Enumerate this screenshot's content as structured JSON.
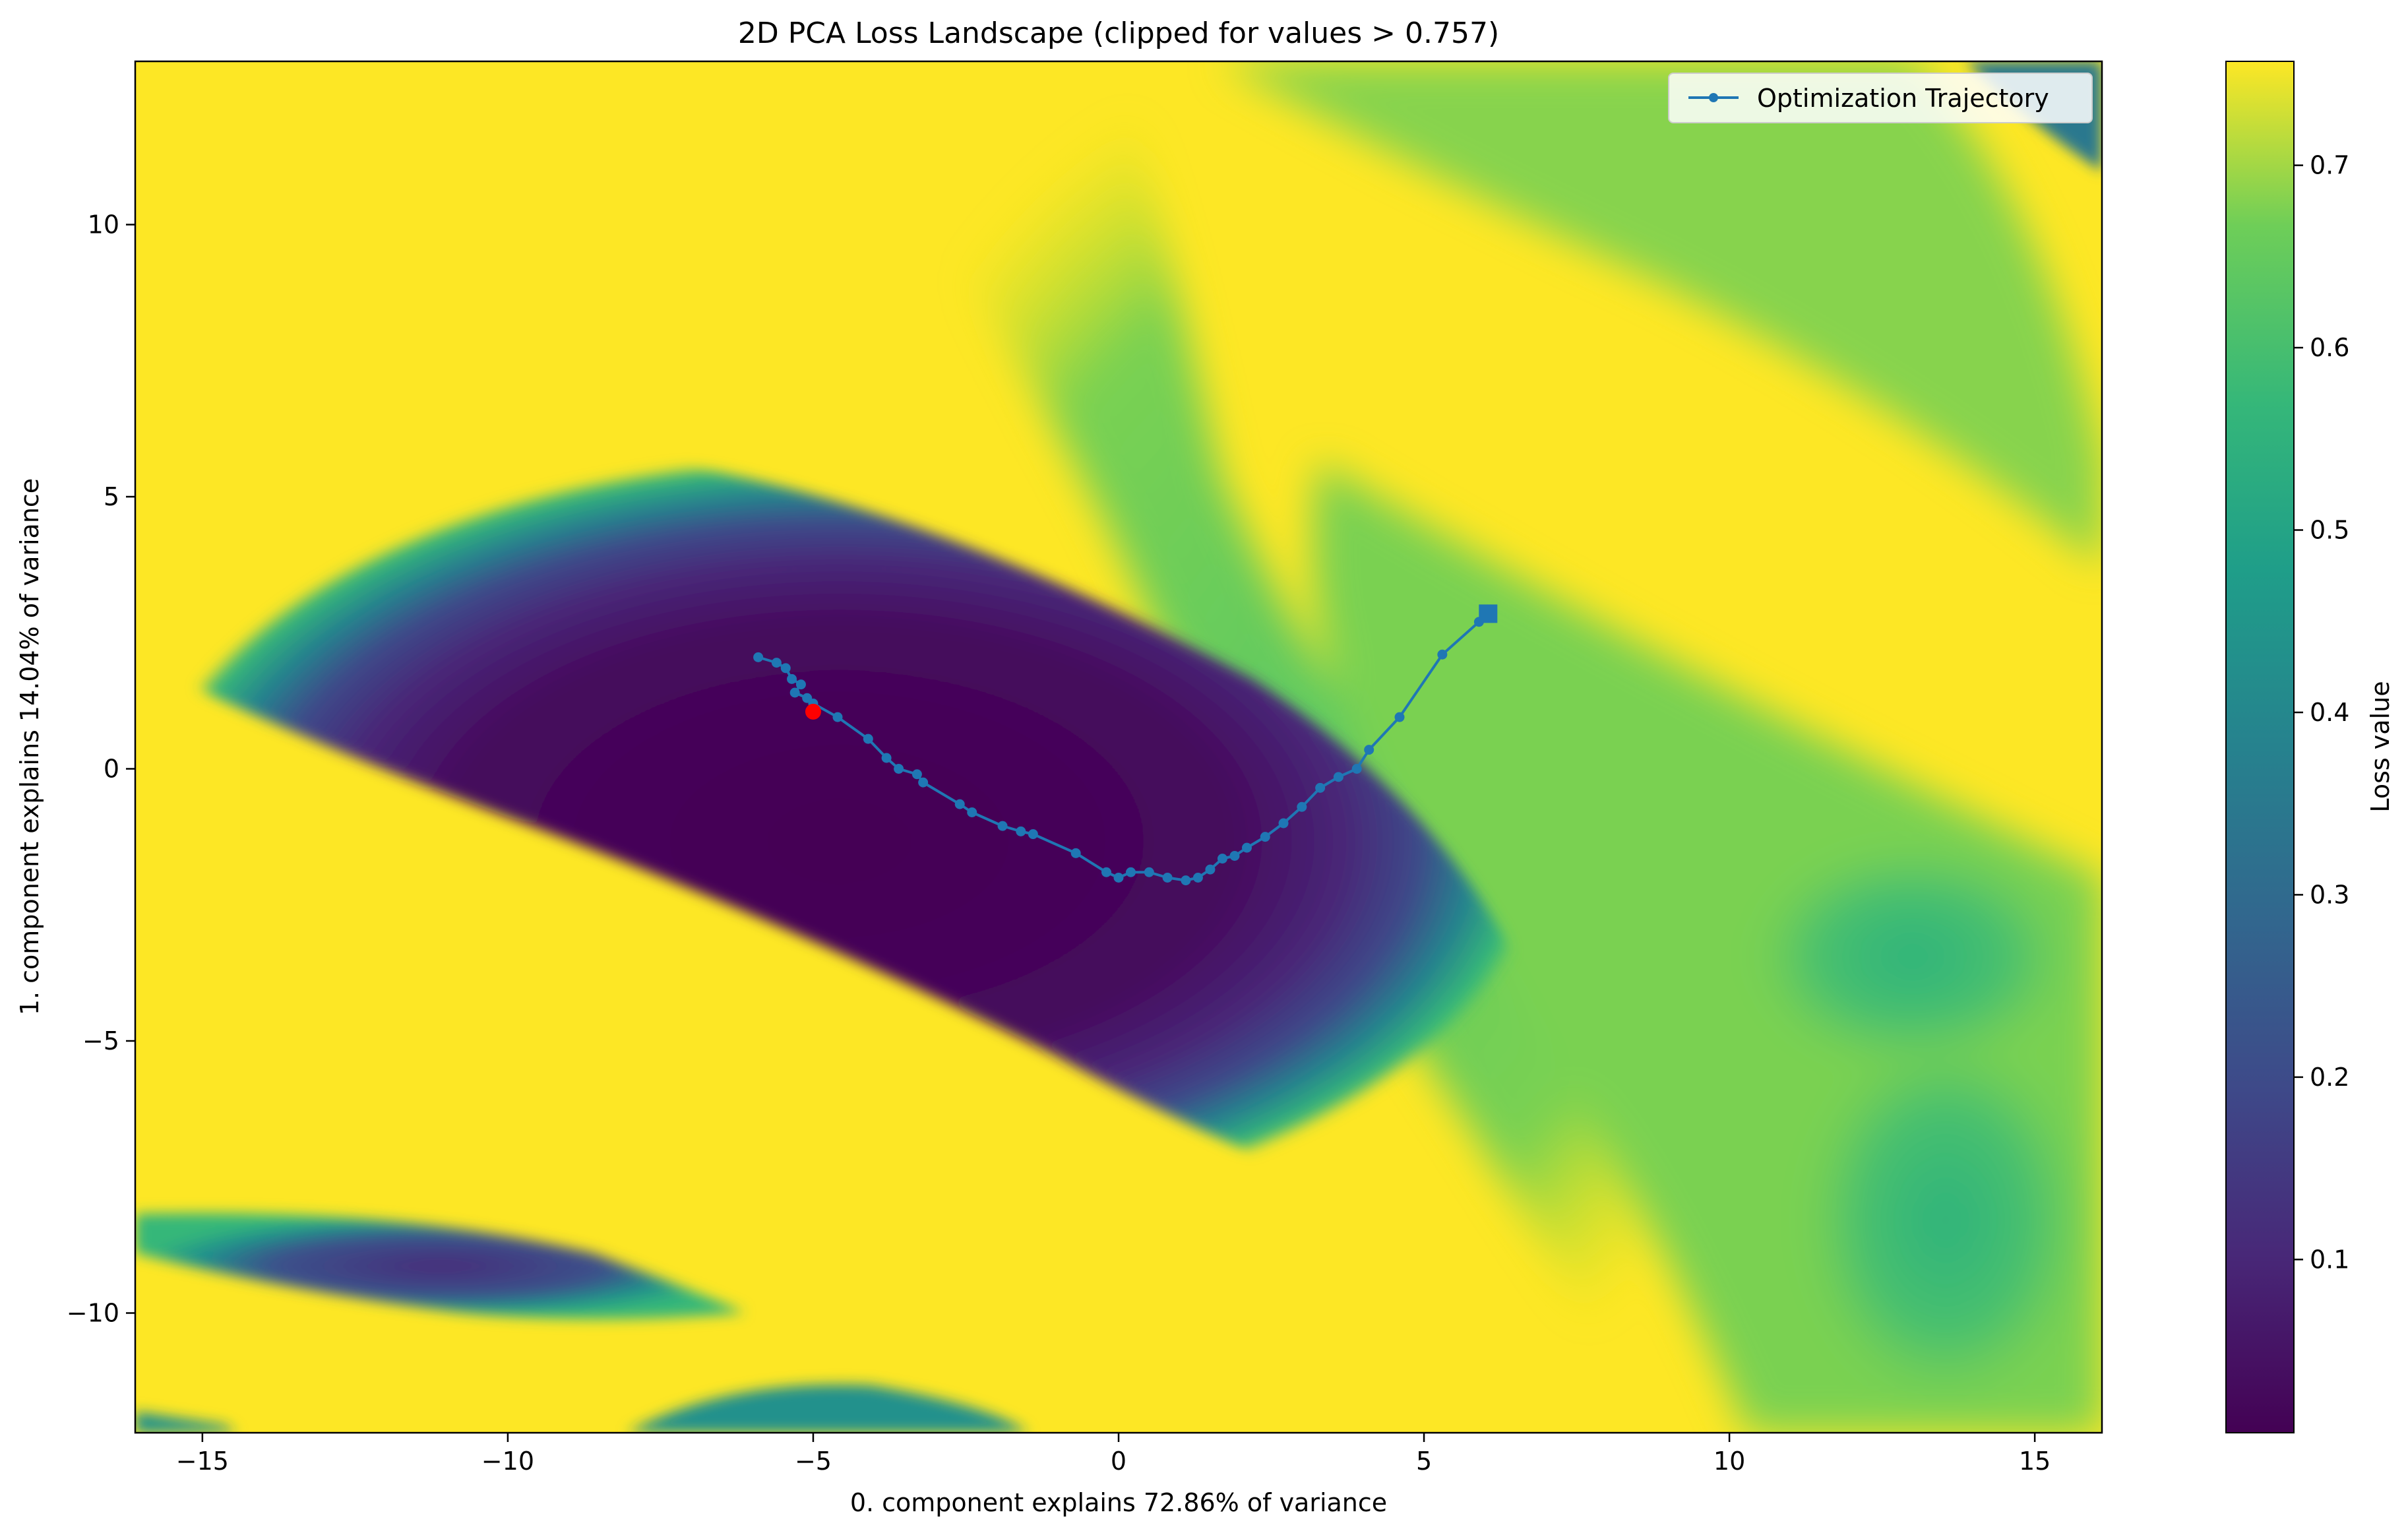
{
  "chart_data": {
    "type": "heatmap",
    "title": "2D PCA Loss Landscape (clipped for values > 0.757)",
    "xlabel": "0. component explains 72.86% of variance",
    "ylabel": "1. component explains 14.04% of variance",
    "xlim": [
      -16.1,
      16.1
    ],
    "ylim": [
      -12.2,
      13.0
    ],
    "x_ticks": [
      -15,
      -10,
      -5,
      0,
      5,
      10,
      15
    ],
    "x_tick_labels": [
      "−15",
      "−10",
      "−5",
      "0",
      "5",
      "10",
      "15"
    ],
    "y_ticks": [
      -10,
      -5,
      0,
      5,
      10
    ],
    "y_tick_labels": [
      "−10",
      "−5",
      "0",
      "5",
      "10"
    ],
    "colormap": "viridis",
    "clip_value": 0.757,
    "colorbar": {
      "label": "Loss value",
      "range": [
        0.005,
        0.757
      ],
      "ticks": [
        0.1,
        0.2,
        0.3,
        0.4,
        0.5,
        0.6,
        0.7
      ],
      "tick_labels": [
        "0.1",
        "0.2",
        "0.3",
        "0.4",
        "0.5",
        "0.6",
        "0.7"
      ]
    },
    "grid": false,
    "legend": {
      "placement": "top-right",
      "entries": [
        "Optimization Trajectory"
      ]
    },
    "series": [
      {
        "name": "Optimization Trajectory",
        "color": "#1f77b4",
        "marker": "circle",
        "x": [
          -5.9,
          -5.6,
          -5.45,
          -5.35,
          -5.2,
          -5.3,
          -5.1,
          -5.0,
          -4.6,
          -4.1,
          -3.8,
          -3.6,
          -3.3,
          -3.2,
          -2.6,
          -2.4,
          -1.9,
          -1.6,
          -1.4,
          -0.7,
          -0.2,
          0.0,
          0.2,
          0.5,
          0.8,
          1.1,
          1.3,
          1.5,
          1.7,
          1.9,
          2.1,
          2.4,
          2.7,
          3.0,
          3.3,
          3.6,
          3.9,
          4.1,
          4.6,
          5.3,
          5.9,
          6.05
        ],
        "y": [
          2.05,
          1.95,
          1.85,
          1.65,
          1.55,
          1.4,
          1.3,
          1.2,
          0.95,
          0.55,
          0.2,
          0.0,
          -0.1,
          -0.25,
          -0.65,
          -0.8,
          -1.05,
          -1.15,
          -1.2,
          -1.55,
          -1.9,
          -2.0,
          -1.9,
          -1.9,
          -2.0,
          -2.05,
          -2.0,
          -1.85,
          -1.65,
          -1.6,
          -1.45,
          -1.25,
          -1.0,
          -0.7,
          -0.35,
          -0.15,
          0.0,
          0.35,
          0.95,
          2.1,
          2.7,
          2.85
        ]
      }
    ],
    "start_marker": {
      "color": "#ff0000",
      "x": -5.0,
      "y": 1.05
    }
  }
}
